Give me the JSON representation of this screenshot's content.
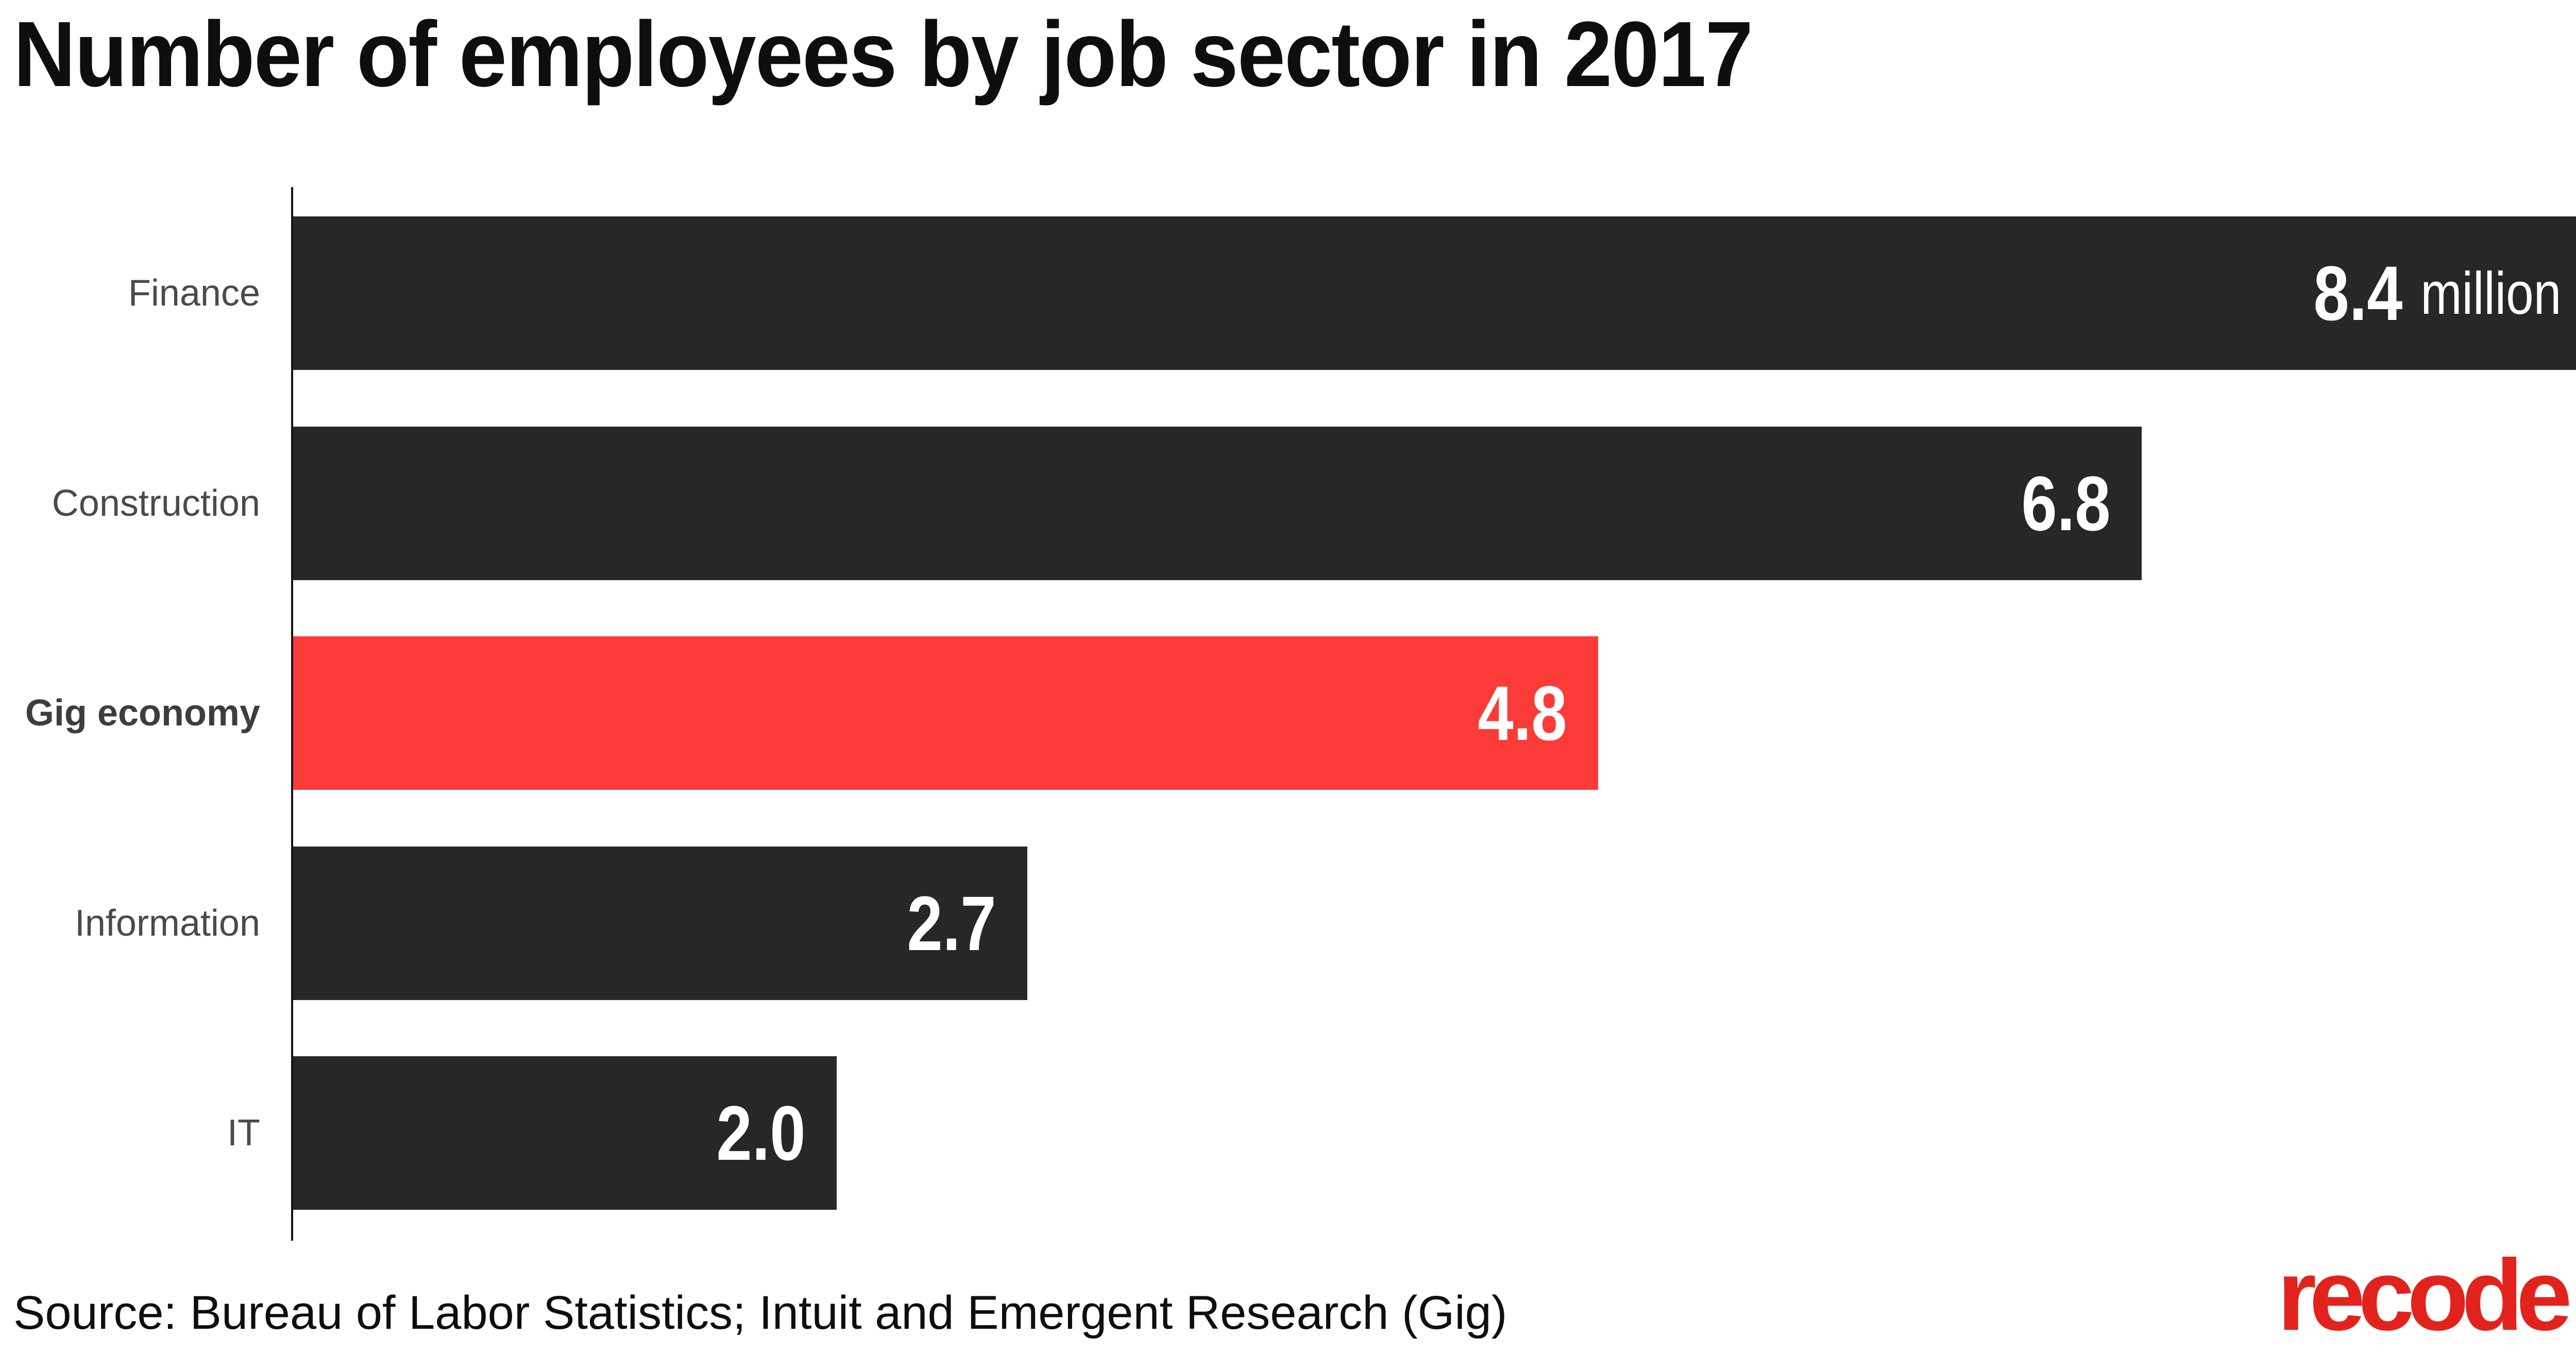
{
  "title": "Number of employees by job sector in 2017",
  "source_note": "Source: Bureau of Labor Statistics; Intuit and Emergent Research (Gig)",
  "logo_text": "recode",
  "colors": {
    "bar": "#272727",
    "highlight": "#fc3b38",
    "logo": "#e2231d",
    "label": "#4a4a4a",
    "label_strong": "#3d3d3d",
    "value_text": "#ffffff",
    "title_text": "#0e0e0e",
    "axis": "#141414"
  },
  "chart_data": {
    "type": "bar",
    "orientation": "horizontal",
    "title": "Number of employees by job sector in 2017",
    "categories": [
      "Finance",
      "Construction",
      "Gig economy",
      "Information",
      "IT"
    ],
    "values": [
      8.4,
      6.8,
      4.8,
      2.7,
      2.0
    ],
    "value_labels": [
      "8.4",
      "6.8",
      "4.8",
      "2.7",
      "2.0"
    ],
    "unit": "million",
    "unit_shown_on": "first_bar_only",
    "xlim": [
      0,
      8.4
    ],
    "highlight_index": 2,
    "highlight_category": "Gig economy",
    "grid": false,
    "legend": "none",
    "value_label_position": "inside-end",
    "source": "Source: Bureau of Labor Statistics; Intuit and Emergent Research (Gig)"
  }
}
